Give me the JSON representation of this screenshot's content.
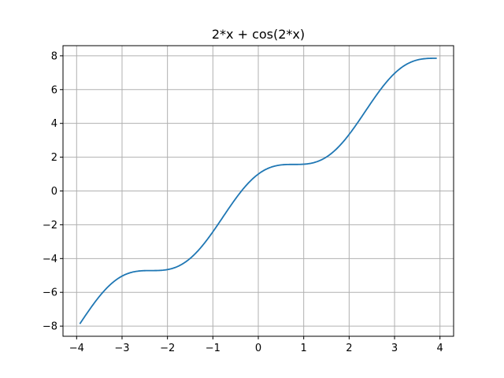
{
  "chart_data": {
    "type": "line",
    "title": "2*x + cos(2*x)",
    "xlabel": "",
    "ylabel": "",
    "function": "2*x + cos(2*x)",
    "xlim": [
      -4.3,
      4.3
    ],
    "ylim": [
      -8.6,
      8.6
    ],
    "x_domain": [
      -3.93,
      3.93
    ],
    "x_ticks": [
      -4,
      -3,
      -2,
      -1,
      0,
      1,
      2,
      3,
      4
    ],
    "x_tick_labels": [
      "−4",
      "−3",
      "−2",
      "−1",
      "0",
      "1",
      "2",
      "3",
      "4"
    ],
    "y_ticks": [
      -8,
      -6,
      -4,
      -2,
      0,
      2,
      4,
      6,
      8
    ],
    "y_tick_labels": [
      "−8",
      "−6",
      "−4",
      "−2",
      "0",
      "2",
      "4",
      "6",
      "8"
    ],
    "grid": true,
    "legend": "none",
    "series": [
      {
        "color": "#1f77b4",
        "x": [
          -3.93,
          -3.5,
          -3.0,
          -2.5,
          -2.0,
          -1.5,
          -1.0,
          -0.5,
          0.0,
          0.5,
          1.0,
          1.5,
          2.0,
          2.5,
          3.0,
          3.5,
          3.93
        ],
        "y": [
          -7.86,
          -6.25,
          -5.04,
          -4.72,
          -4.65,
          -3.99,
          -2.42,
          -0.46,
          1.0,
          1.54,
          1.58,
          2.01,
          3.35,
          5.28,
          6.96,
          7.75,
          7.86
        ]
      }
    ]
  }
}
